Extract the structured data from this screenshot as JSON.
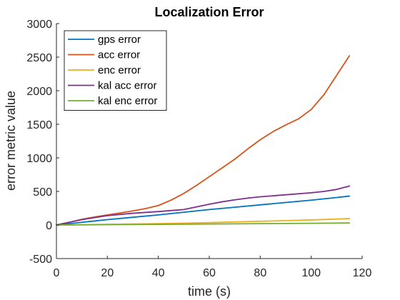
{
  "chart_data": {
    "type": "line",
    "title": "Localization Error",
    "xlabel": "time (s)",
    "ylabel": "error metric value",
    "xlim": [
      0,
      120
    ],
    "ylim": [
      -500,
      3000
    ],
    "xticks": [
      0,
      20,
      40,
      60,
      80,
      100,
      120
    ],
    "yticks": [
      -500,
      0,
      500,
      1000,
      1500,
      2000,
      2500,
      3000
    ],
    "grid": false,
    "legend_position": "top-left",
    "series": [
      {
        "name": "gps error",
        "color": "#0072BD",
        "points": [
          [
            0,
            0
          ],
          [
            10,
            40
          ],
          [
            20,
            80
          ],
          [
            30,
            115
          ],
          [
            40,
            150
          ],
          [
            50,
            190
          ],
          [
            60,
            230
          ],
          [
            70,
            265
          ],
          [
            80,
            300
          ],
          [
            90,
            335
          ],
          [
            100,
            370
          ],
          [
            110,
            410
          ],
          [
            115,
            430
          ]
        ]
      },
      {
        "name": "acc error",
        "color": "#D95319",
        "points": [
          [
            0,
            0
          ],
          [
            5,
            40
          ],
          [
            10,
            85
          ],
          [
            15,
            120
          ],
          [
            20,
            150
          ],
          [
            25,
            180
          ],
          [
            30,
            210
          ],
          [
            35,
            245
          ],
          [
            40,
            290
          ],
          [
            45,
            370
          ],
          [
            50,
            470
          ],
          [
            55,
            590
          ],
          [
            60,
            720
          ],
          [
            65,
            850
          ],
          [
            70,
            980
          ],
          [
            75,
            1130
          ],
          [
            80,
            1270
          ],
          [
            85,
            1390
          ],
          [
            90,
            1490
          ],
          [
            95,
            1580
          ],
          [
            100,
            1720
          ],
          [
            105,
            1940
          ],
          [
            110,
            2230
          ],
          [
            115,
            2520
          ]
        ]
      },
      {
        "name": "enc error",
        "color": "#EDB120",
        "points": [
          [
            0,
            0
          ],
          [
            20,
            10
          ],
          [
            40,
            20
          ],
          [
            60,
            35
          ],
          [
            80,
            55
          ],
          [
            100,
            75
          ],
          [
            115,
            95
          ]
        ]
      },
      {
        "name": "kal acc error",
        "color": "#7E2F8E",
        "points": [
          [
            0,
            0
          ],
          [
            5,
            40
          ],
          [
            10,
            80
          ],
          [
            15,
            110
          ],
          [
            20,
            140
          ],
          [
            30,
            175
          ],
          [
            40,
            200
          ],
          [
            50,
            230
          ],
          [
            55,
            270
          ],
          [
            60,
            310
          ],
          [
            65,
            345
          ],
          [
            70,
            375
          ],
          [
            75,
            400
          ],
          [
            80,
            420
          ],
          [
            90,
            450
          ],
          [
            100,
            480
          ],
          [
            105,
            500
          ],
          [
            110,
            530
          ],
          [
            115,
            580
          ]
        ]
      },
      {
        "name": "kal enc error",
        "color": "#77AC30",
        "points": [
          [
            0,
            0
          ],
          [
            20,
            5
          ],
          [
            40,
            10
          ],
          [
            60,
            15
          ],
          [
            80,
            20
          ],
          [
            100,
            25
          ],
          [
            115,
            30
          ]
        ]
      }
    ]
  }
}
